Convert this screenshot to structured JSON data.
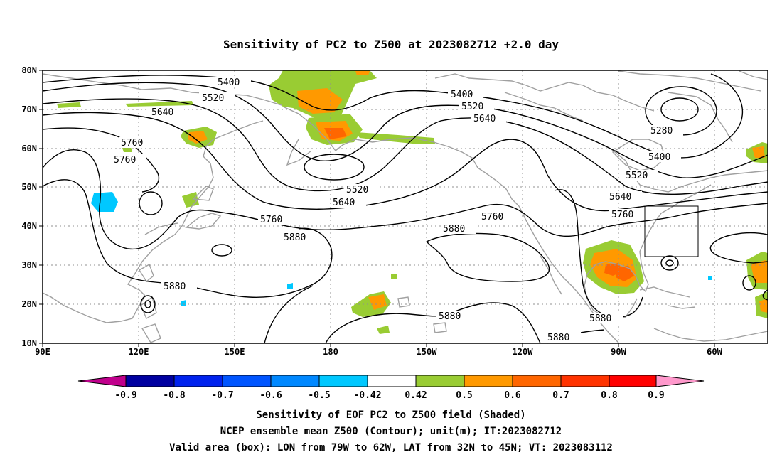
{
  "title": "Sensitivity of PC2 to Z500 at 2023082712 +2.0 day",
  "lat_labels": [
    "80N",
    "70N",
    "60N",
    "50N",
    "40N",
    "30N",
    "20N",
    "10N"
  ],
  "lon_labels": [
    "90E",
    "120E",
    "150E",
    "180",
    "150W",
    "120W",
    "90W",
    "60W"
  ],
  "contour_labels": {
    "c5400a": "5400",
    "c5400b": "5400",
    "c5400c": "5400",
    "c5520a": "5520",
    "c5520b": "5520",
    "c5520c": "5520",
    "c5520d": "5520",
    "c5640a": "5640",
    "c5640b": "5640",
    "c5640c": "5640",
    "c5640d": "5640",
    "c5760a": "5760",
    "c5760b": "5760",
    "c5760c": "5760",
    "c5760d": "5760",
    "c5760e": "5760",
    "c5880a": "5880",
    "c5880b": "5880",
    "c5880c": "5880",
    "c5880d": "5880",
    "c5880e": "5880",
    "c5880f": "5880",
    "c5280": "5280"
  },
  "colorbar": {
    "labels": [
      "-0.9",
      "-0.8",
      "-0.7",
      "-0.6",
      "-0.5",
      "-0.42",
      "0.42",
      "0.5",
      "0.6",
      "0.7",
      "0.8",
      "0.9"
    ],
    "colors": [
      "#0000a0",
      "#0022ee",
      "#0055ff",
      "#0088ff",
      "#00c8ff",
      "#ffffff",
      "#99cc33",
      "#ff9900",
      "#ff6600",
      "#ff3300",
      "#ff0000"
    ],
    "low_end_color": "#c0008c",
    "high_end_color": "#ff99cc"
  },
  "caption": {
    "line1": "Sensitivity of EOF PC2 to Z500 field (Shaded)",
    "line2": "NCEP ensemble mean Z500 (Contour); unit(m); IT:2023082712",
    "line3": "Valid area (box): LON from 79W to 62W, LAT from 32N to 45N; VT: 2023083112"
  }
}
